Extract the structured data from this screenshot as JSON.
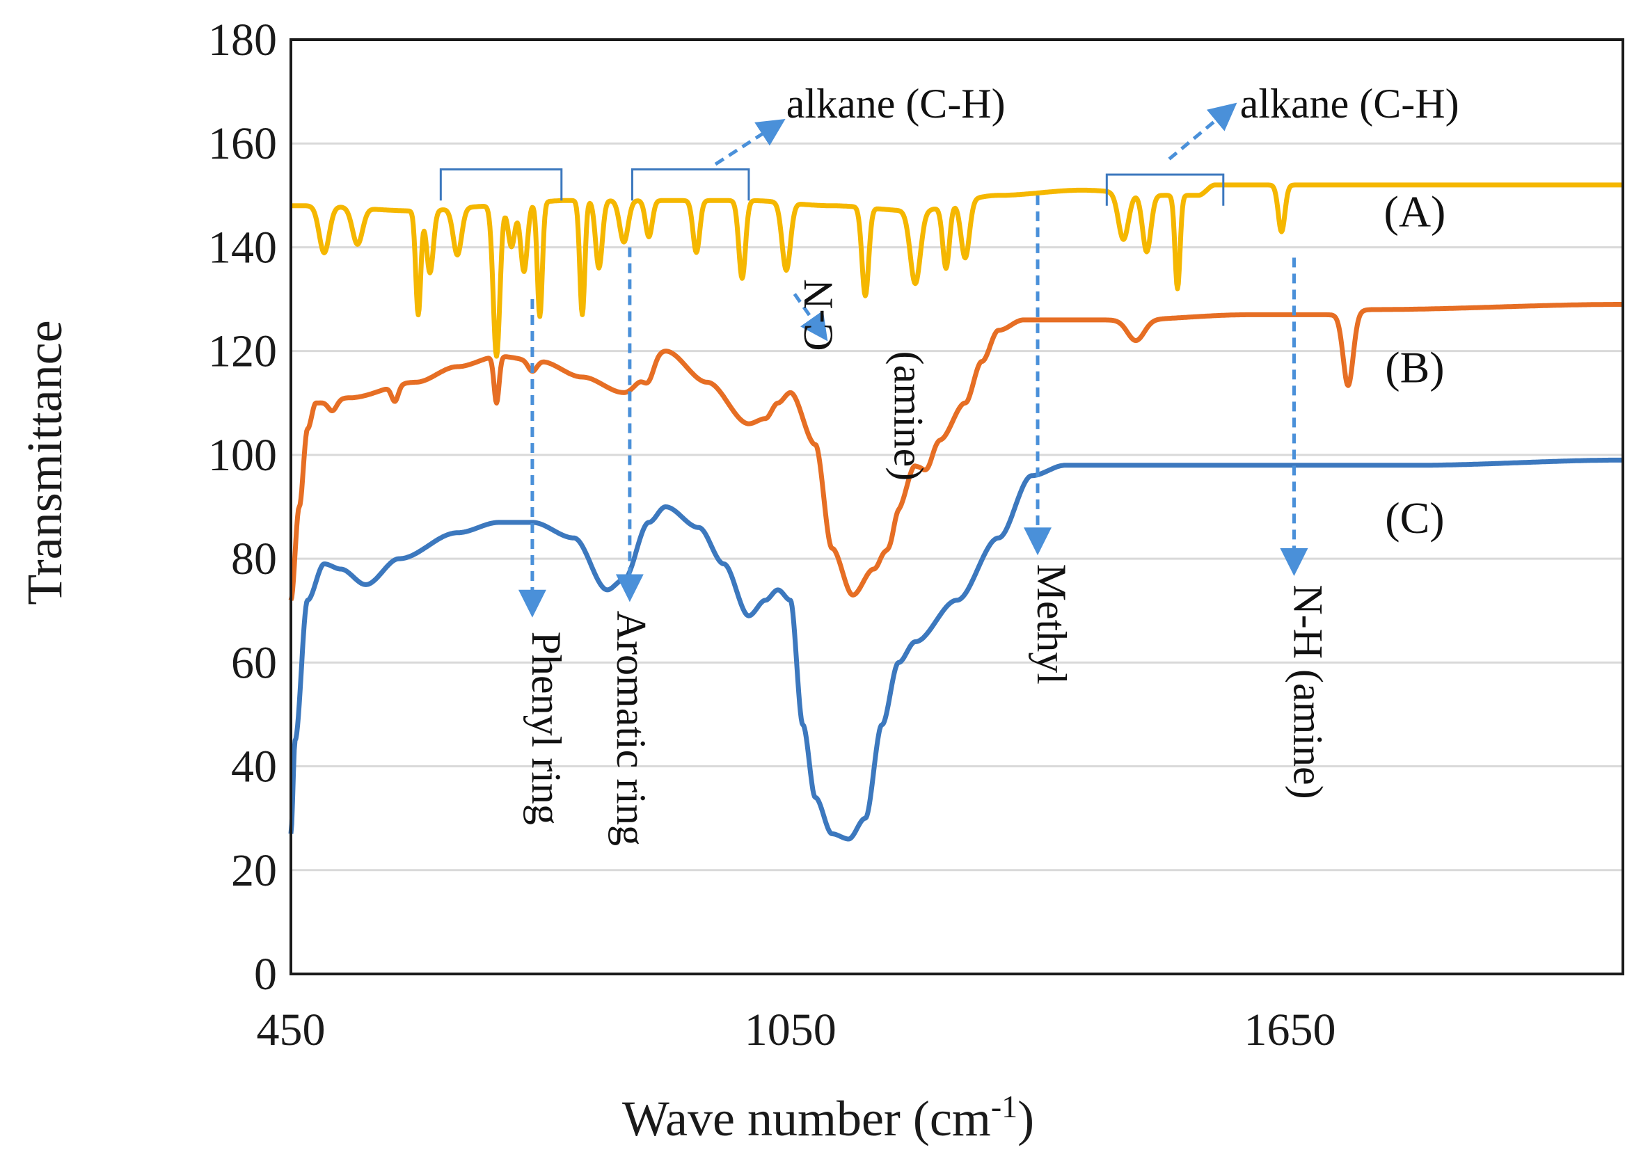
{
  "chart_data": {
    "type": "line",
    "title": "",
    "xlabel": "Wave number (cm",
    "xlabel_superscript": "-1",
    "xlabel_suffix": ")",
    "ylabel": "Transmittance",
    "xlim": [
      450,
      2050
    ],
    "ylim": [
      0,
      180
    ],
    "grid": true,
    "x_ticks": [
      {
        "value": 450,
        "label": "450"
      },
      {
        "value": 1050,
        "label": "1050"
      },
      {
        "value": 1650,
        "label": "1650"
      }
    ],
    "y_ticks": [
      {
        "value": 0,
        "label": "0"
      },
      {
        "value": 20,
        "label": "20"
      },
      {
        "value": 40,
        "label": "40"
      },
      {
        "value": 60,
        "label": "60"
      },
      {
        "value": 80,
        "label": "80"
      },
      {
        "value": 100,
        "label": "100"
      },
      {
        "value": 120,
        "label": "120"
      },
      {
        "value": 140,
        "label": "140"
      },
      {
        "value": 160,
        "label": "160"
      },
      {
        "value": 180,
        "label": "180"
      }
    ],
    "series": [
      {
        "name": "(A)",
        "color": "#f5b700",
        "base": [
          [
            450,
            148
          ],
          [
            470,
            148
          ],
          [
            600,
            147
          ],
          [
            700,
            148
          ],
          [
            780,
            149
          ],
          [
            900,
            149
          ],
          [
            1000,
            149
          ],
          [
            1100,
            148
          ],
          [
            1200,
            147
          ],
          [
            1300,
            150
          ],
          [
            1400,
            151
          ],
          [
            1500,
            150
          ],
          [
            1540,
            150
          ],
          [
            1560,
            152
          ],
          [
            1650,
            152
          ],
          [
            1800,
            152
          ],
          [
            2050,
            152
          ]
        ],
        "dips": [
          [
            490,
            9,
            6
          ],
          [
            530,
            7,
            6
          ],
          [
            603,
            20,
            3
          ],
          [
            617,
            12,
            4
          ],
          [
            650,
            9,
            5
          ],
          [
            697,
            29,
            4
          ],
          [
            715,
            8,
            4
          ],
          [
            730,
            13,
            4
          ],
          [
            749,
            22,
            3
          ],
          [
            800,
            22,
            3
          ],
          [
            820,
            13,
            4
          ],
          [
            850,
            8,
            5
          ],
          [
            880,
            7,
            4
          ],
          [
            937,
            10,
            4
          ],
          [
            992,
            15,
            4
          ],
          [
            1045,
            13,
            5
          ],
          [
            1140,
            17,
            4
          ],
          [
            1200,
            14,
            6
          ],
          [
            1237,
            12,
            4
          ],
          [
            1260,
            11,
            5
          ],
          [
            1450,
            9,
            6
          ],
          [
            1478,
            11,
            5
          ],
          [
            1515,
            18,
            3
          ],
          [
            1640,
            9,
            4
          ]
        ],
        "label_value": [
          1800,
          144
        ]
      },
      {
        "name": "(B)",
        "color": "#e66e24",
        "base": [
          [
            450,
            72
          ],
          [
            460,
            90
          ],
          [
            470,
            105
          ],
          [
            480,
            110
          ],
          [
            520,
            111
          ],
          [
            600,
            114
          ],
          [
            650,
            117
          ],
          [
            700,
            119
          ],
          [
            750,
            118
          ],
          [
            800,
            115
          ],
          [
            850,
            112
          ],
          [
            900,
            120
          ],
          [
            950,
            114
          ],
          [
            1000,
            106
          ],
          [
            1020,
            107
          ],
          [
            1035,
            110
          ],
          [
            1050,
            112
          ],
          [
            1080,
            102
          ],
          [
            1100,
            82
          ],
          [
            1125,
            73
          ],
          [
            1150,
            78
          ],
          [
            1180,
            90
          ],
          [
            1200,
            98
          ],
          [
            1230,
            103
          ],
          [
            1260,
            110
          ],
          [
            1280,
            118
          ],
          [
            1300,
            124
          ],
          [
            1330,
            126
          ],
          [
            1450,
            126
          ],
          [
            1600,
            127
          ],
          [
            1700,
            127
          ],
          [
            1750,
            128
          ],
          [
            2050,
            129
          ]
        ],
        "dips": [
          [
            500,
            2,
            5
          ],
          [
            575,
            3,
            4
          ],
          [
            697,
            9,
            3
          ],
          [
            740,
            2,
            5
          ],
          [
            880,
            3,
            6
          ],
          [
            1170,
            4,
            5
          ],
          [
            1215,
            3,
            6
          ],
          [
            1465,
            4,
            10
          ],
          [
            1720,
            14,
            6
          ]
        ],
        "label_value": [
          1800,
          114
        ]
      },
      {
        "name": "(C)",
        "color": "#3c78be",
        "base": [
          [
            450,
            27
          ],
          [
            455,
            45
          ],
          [
            470,
            72
          ],
          [
            490,
            79
          ],
          [
            510,
            78
          ],
          [
            540,
            75
          ],
          [
            580,
            80
          ],
          [
            650,
            85
          ],
          [
            700,
            87
          ],
          [
            740,
            87
          ],
          [
            790,
            84
          ],
          [
            830,
            74
          ],
          [
            850,
            76
          ],
          [
            880,
            87
          ],
          [
            900,
            90
          ],
          [
            940,
            86
          ],
          [
            970,
            79
          ],
          [
            1000,
            69
          ],
          [
            1020,
            72
          ],
          [
            1035,
            74
          ],
          [
            1050,
            72
          ],
          [
            1065,
            48
          ],
          [
            1080,
            34
          ],
          [
            1100,
            27
          ],
          [
            1120,
            26
          ],
          [
            1140,
            30
          ],
          [
            1160,
            48
          ],
          [
            1180,
            60
          ],
          [
            1200,
            64
          ],
          [
            1250,
            72
          ],
          [
            1300,
            84
          ],
          [
            1340,
            96
          ],
          [
            1380,
            98
          ],
          [
            1500,
            98
          ],
          [
            1650,
            98
          ],
          [
            1800,
            98
          ],
          [
            2050,
            99
          ]
        ],
        "dips": [],
        "label_value": [
          1800,
          85
        ]
      }
    ],
    "annotations": [
      {
        "text": "alkane (C-H)",
        "anchor_value": [
          1045,
          165
        ]
      },
      {
        "text": "alkane (C-H)",
        "anchor_value": [
          1590,
          165
        ]
      },
      {
        "text": "C-N",
        "anchor_value": [
          1100,
          120
        ]
      },
      {
        "text": "(amine)",
        "anchor_value": [
          1175,
          120
        ]
      },
      {
        "text": "Phenyl ring",
        "anchor_value": [
          740,
          66
        ]
      },
      {
        "text": "Aromatic ring",
        "anchor_value": [
          842,
          70
        ]
      },
      {
        "text": "Methyl",
        "anchor_value": [
          1347,
          79
        ]
      },
      {
        "text": "N-H (amine)",
        "anchor_value": [
          1655,
          75
        ]
      }
    ],
    "brackets": [
      {
        "x1": 630,
        "x2": 775,
        "y": 155
      },
      {
        "x1": 860,
        "x2": 1000,
        "y": 155
      },
      {
        "x1": 1430,
        "x2": 1570,
        "y": 154
      }
    ],
    "dashed_arrows": [
      {
        "from": [
          740,
          130
        ],
        "to": [
          740,
          70
        ]
      },
      {
        "from": [
          857,
          140
        ],
        "to": [
          857,
          73
        ]
      },
      {
        "from": [
          1347,
          150
        ],
        "to": [
          1347,
          82
        ]
      },
      {
        "from": [
          1655,
          138
        ],
        "to": [
          1655,
          78
        ]
      },
      {
        "from": [
          1055,
          131
        ],
        "to": [
          1090,
          123
        ]
      },
      {
        "from": [
          960,
          156
        ],
        "to": [
          1037,
          164
        ]
      },
      {
        "from": [
          1505,
          157
        ],
        "to": [
          1580,
          167
        ]
      }
    ],
    "arrow_color": "#4a90d9",
    "bracket_color": "#3c78be"
  }
}
